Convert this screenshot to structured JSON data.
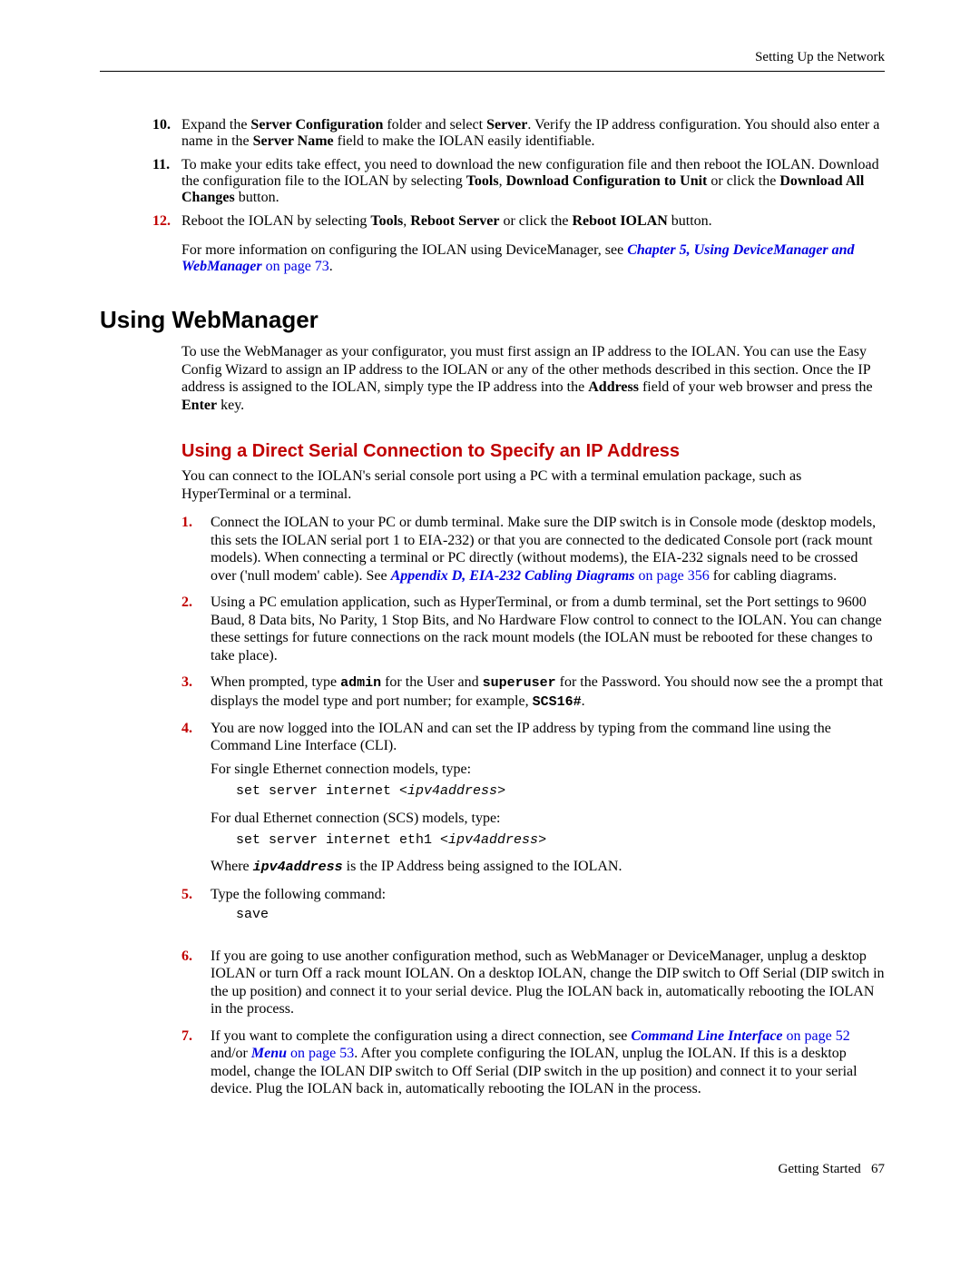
{
  "header": {
    "right": "Setting Up the Network"
  },
  "top_steps": [
    {
      "num": "10.",
      "parts": [
        {
          "t": "Expand the "
        },
        {
          "t": "Server Configuration",
          "b": true
        },
        {
          "t": " folder and select "
        },
        {
          "t": "Server",
          "b": true
        },
        {
          "t": ". Verify the IP address configuration. You should also enter a name in the "
        },
        {
          "t": "Server Name",
          "b": true
        },
        {
          "t": " field to make the IOLAN easily identifiable."
        }
      ]
    },
    {
      "num": "11.",
      "parts": [
        {
          "t": "To make your edits take effect, you need to download the new configuration file and then reboot the IOLAN. Download the configuration file to the IOLAN by selecting "
        },
        {
          "t": "Tools",
          "b": true
        },
        {
          "t": ", "
        },
        {
          "t": "Download Configuration to Unit",
          "b": true
        },
        {
          "t": " or click the "
        },
        {
          "t": "Download All Changes",
          "b": true
        },
        {
          "t": " button."
        }
      ]
    },
    {
      "num": "12.",
      "num_red": true,
      "parts": [
        {
          "t": "Reboot the IOLAN by selecting "
        },
        {
          "t": "Tools",
          "b": true
        },
        {
          "t": ", "
        },
        {
          "t": "Reboot Server",
          "b": true
        },
        {
          "t": " or click the "
        },
        {
          "t": "Reboot IOLAN",
          "b": true
        },
        {
          "t": " button."
        }
      ]
    }
  ],
  "top_trail": {
    "pre": "For more information on configuring the IOLAN using DeviceManager, see ",
    "link": "Chapter 5, Using DeviceManager and WebManager",
    "page": " on page 73",
    "post": "."
  },
  "h1": "Using WebManager",
  "intro": {
    "parts": [
      {
        "t": "To use the WebManager as your configurator, you must first assign an IP address to the IOLAN. You can use the Easy Config Wizard to assign an IP address to the IOLAN or any of the other methods described in this section. Once the IP address is assigned to the IOLAN, simply type the IP address into the "
      },
      {
        "t": "Address",
        "b": true
      },
      {
        "t": " field of your web browser and press the "
      },
      {
        "t": "Enter",
        "b": true
      },
      {
        "t": " key."
      }
    ]
  },
  "h2": "Using a Direct Serial Connection to Specify an IP Address",
  "serial_intro": "You can connect to the IOLAN's serial console port using a PC with a terminal emulation package, such as HyperTerminal or a terminal.",
  "steps": {
    "s1": {
      "num": "1.",
      "pre": "Connect the IOLAN to your PC or dumb terminal. Make sure the DIP switch is in Console mode (desktop models, this sets the IOLAN serial port 1 to EIA-232) or that you are connected to the dedicated Console port (rack mount models). When connecting a terminal or PC directly (without modems), the EIA-232 signals need to be crossed over ('null modem' cable). See ",
      "link": "Appendix D, EIA-232 Cabling Diagrams",
      "page": " on page 356",
      "post": " for cabling diagrams."
    },
    "s2": {
      "num": "2.",
      "text": "Using a PC emulation application, such as HyperTerminal, or from a dumb terminal, set the Port settings to 9600 Baud, 8 Data bits, No Parity, 1 Stop Bits, and No Hardware Flow control to connect to the IOLAN. You can change these settings for future connections on the rack mount models (the IOLAN must be rebooted for these changes to take place)."
    },
    "s3": {
      "num": "3.",
      "p1": "When prompted, type ",
      "admin": "admin",
      "p2": " for the User and ",
      "superuser": "superuser",
      "p3": " for the Password. You should now see the a prompt that displays the model type and port number; for example, ",
      "prompt": "SCS16#",
      "p4": "."
    },
    "s4": {
      "num": "4.",
      "a": "You are now logged into the IOLAN and can set the IP address by typing from the command line using the Command Line Interface (CLI).",
      "b": "For single Ethernet connection models, type:",
      "code1a": "set server internet <",
      "code1b": "ipv4address",
      "code1c": ">",
      "c": "For dual Ethernet connection (SCS) models, type:",
      "code2a": "set server internet eth1 <",
      "code2b": "ipv4address",
      "code2c": ">",
      "d1": "Where ",
      "d_code": "ipv4address",
      "d2": " is the IP Address being assigned to the IOLAN."
    },
    "s5": {
      "num": "5.",
      "a": "Type the following command:",
      "code": "save"
    },
    "s6": {
      "num": "6.",
      "text": "If you are going to use another configuration method, such as WebManager or DeviceManager, unplug a desktop IOLAN or turn Off a rack mount IOLAN. On a desktop IOLAN, change the DIP switch to Off Serial (DIP switch in the up position) and connect it to your serial device. Plug the IOLAN back in, automatically rebooting the IOLAN in the process."
    },
    "s7": {
      "num": "7.",
      "p1": "If you want to complete the configuration using a direct connection, see ",
      "link1": "Command Line Interface",
      "page1": " on page 52",
      "mid": " and/or ",
      "link2": "Menu",
      "page2": " on page 53",
      "p2": ". After you complete configuring the IOLAN, unplug the IOLAN. If this is a desktop model, change the IOLAN DIP switch to Off Serial (DIP switch in the up position) and connect it to your serial device. Plug the IOLAN back in, automatically rebooting the IOLAN in the process."
    }
  },
  "footer": {
    "left": "Getting Started",
    "page": "67"
  }
}
